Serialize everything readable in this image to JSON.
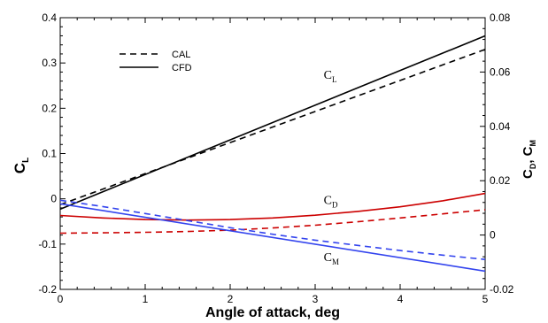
{
  "chart_data": {
    "type": "line",
    "xlabel": "Angle of attack, deg",
    "ylabel_left": {
      "main": "C",
      "sub": "L"
    },
    "ylabel_right": {
      "main1": "C",
      "sub1": "D",
      "sep": ", ",
      "main2": "C",
      "sub2": "M"
    },
    "xlim": [
      0,
      5
    ],
    "ylim_left": [
      -0.2,
      0.4
    ],
    "ylim_right": [
      -0.02,
      0.08
    ],
    "x_ticks": [
      "0",
      "1",
      "2",
      "3",
      "4",
      "5"
    ],
    "y_left_ticks": [
      "-0.2",
      "-0.1",
      "0",
      "0.1",
      "0.2",
      "0.3",
      "0.4"
    ],
    "y_right_ticks": [
      "-0.02",
      "0",
      "0.02",
      "0.04",
      "0.06",
      "0.08"
    ],
    "grid": false,
    "legend": {
      "placement": "top-left",
      "entries": [
        {
          "label": "CAL",
          "style": "dashed",
          "color": "#000000"
        },
        {
          "label": "CFD",
          "style": "solid",
          "color": "#000000"
        }
      ]
    },
    "series": [
      {
        "name": "CL (CAL)",
        "axis": "left",
        "style": "dashed",
        "color": "#000000",
        "x": [
          0,
          5
        ],
        "y": [
          -0.013,
          0.33
        ]
      },
      {
        "name": "CL (CFD)",
        "axis": "left",
        "style": "solid",
        "color": "#000000",
        "x": [
          0,
          5
        ],
        "y": [
          -0.023,
          0.36
        ]
      },
      {
        "name": "CD (CAL)",
        "axis": "right",
        "style": "dashed",
        "color": "#cc0000",
        "x": [
          0,
          0.5,
          1,
          1.5,
          2,
          2.5,
          3,
          3.5,
          4,
          4.5,
          5
        ],
        "y": [
          0.0007,
          0.0008,
          0.001,
          0.0013,
          0.0018,
          0.0026,
          0.0036,
          0.0049,
          0.0063,
          0.0078,
          0.0093
        ]
      },
      {
        "name": "CD (CFD)",
        "axis": "right",
        "style": "solid",
        "color": "#cc0000",
        "x": [
          0,
          0.5,
          1,
          1.5,
          2,
          2.5,
          3,
          3.5,
          4,
          4.5,
          5
        ],
        "y": [
          0.0072,
          0.0063,
          0.0057,
          0.0055,
          0.0057,
          0.0063,
          0.0073,
          0.0087,
          0.0104,
          0.0126,
          0.0153
        ]
      },
      {
        "name": "CM (CAL)",
        "axis": "right",
        "style": "dashed",
        "color": "#3344ee",
        "x": [
          0,
          0.5,
          1,
          1.5,
          2,
          2.5,
          3,
          3.5,
          4,
          4.5,
          5
        ],
        "y": [
          0.0128,
          0.0105,
          0.0079,
          0.0053,
          0.0027,
          0.0003,
          -0.0019,
          -0.0038,
          -0.0057,
          -0.0074,
          -0.009
        ]
      },
      {
        "name": "CM (CFD)",
        "axis": "right",
        "style": "solid",
        "color": "#3344ee",
        "x": [
          0,
          5
        ],
        "y": [
          0.0115,
          -0.0133
        ]
      }
    ],
    "annotations": [
      {
        "main": "C",
        "sub": "L",
        "x": 3.1,
        "y_right": 0.0575
      },
      {
        "main": "C",
        "sub": "D",
        "x": 3.1,
        "y_right": 0.0115
      },
      {
        "main": "C",
        "sub": "M",
        "x": 3.1,
        "y_right": -0.0095
      }
    ]
  }
}
